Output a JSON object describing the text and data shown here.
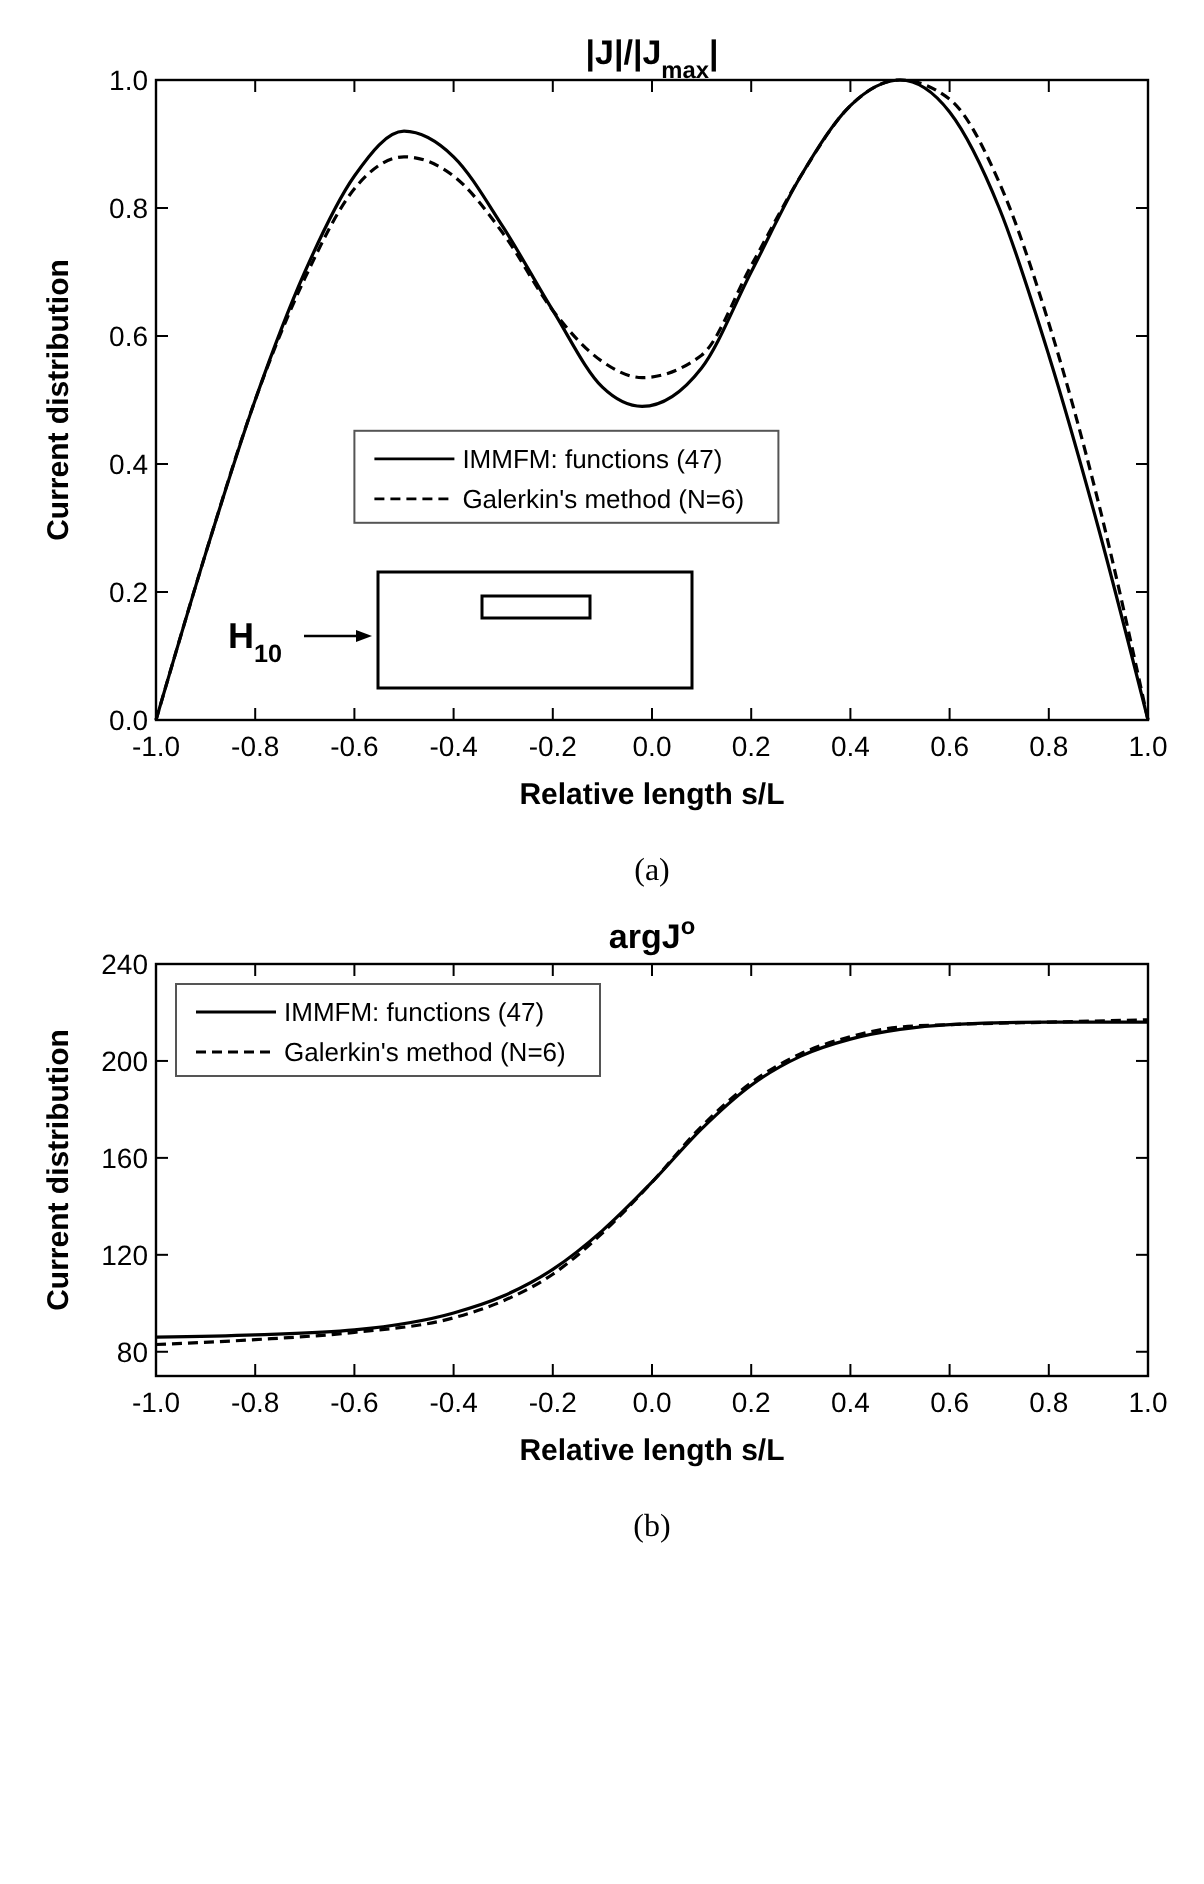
{
  "chart_data": [
    {
      "type": "line",
      "title": "|J|/|J$_{max}$|",
      "xlabel": "Relative length s/L",
      "ylabel": "Current distribution",
      "xlim": [
        -1,
        1
      ],
      "ylim": [
        0,
        1
      ],
      "xticks": [
        {
          "value": -1,
          "label": "-1.0"
        },
        -0.8,
        -0.6,
        -0.4,
        -0.2,
        {
          "value": 0,
          "label": "0.0"
        },
        0.2,
        0.4,
        0.6,
        0.8,
        {
          "value": 1,
          "label": "1.0"
        }
      ],
      "yticks": [
        {
          "value": 0,
          "label": "0.0"
        },
        0.2,
        0.4,
        0.6,
        0.8,
        {
          "value": 1,
          "label": "1.0"
        }
      ],
      "legend": "center",
      "annotations": [
        "H$_{10}$",
        "(a)"
      ],
      "x": [
        -1,
        -0.9,
        -0.8,
        -0.7,
        -0.6,
        -0.5,
        -0.4,
        -0.3,
        -0.2,
        -0.1,
        -0.02,
        0.1,
        0.2,
        0.3,
        0.4,
        0.5,
        0.6,
        0.7,
        0.8,
        0.9,
        1
      ],
      "series": [
        {
          "name": "IMMFM: functions (47)",
          "color": "#000000",
          "line_style": "solid",
          "values": [
            0,
            0.26,
            0.5,
            0.7,
            0.85,
            0.92,
            0.88,
            0.77,
            0.64,
            0.52,
            0.49,
            0.55,
            0.7,
            0.85,
            0.96,
            1,
            0.95,
            0.8,
            0.57,
            0.3,
            0
          ]
        },
        {
          "name": "Galerkin's method (N=6)",
          "color": "#000000",
          "line_style": "dashed",
          "values": [
            0,
            0.26,
            0.5,
            0.69,
            0.83,
            0.88,
            0.85,
            0.76,
            0.64,
            0.56,
            0.535,
            0.57,
            0.71,
            0.85,
            0.96,
            1,
            0.97,
            0.84,
            0.62,
            0.34,
            0
          ]
        }
      ]
    },
    {
      "type": "line",
      "title": "argJ$^{o}$",
      "xlabel": "Relative length s/L",
      "ylabel": "Current distribution",
      "xlim": [
        -1,
        1
      ],
      "ylim": [
        70,
        240
      ],
      "xticks": [
        {
          "value": -1,
          "label": "-1.0"
        },
        -0.8,
        -0.6,
        -0.4,
        -0.2,
        {
          "value": 0,
          "label": "0.0"
        },
        0.2,
        0.4,
        0.6,
        0.8,
        {
          "value": 1,
          "label": "1.0"
        }
      ],
      "yticks": [
        80,
        120,
        160,
        200,
        240
      ],
      "legend": "top left",
      "annotations": [
        "(b)"
      ],
      "x": [
        -1,
        -0.8,
        -0.6,
        -0.4,
        -0.3,
        -0.2,
        -0.1,
        0,
        0.1,
        0.2,
        0.3,
        0.4,
        0.5,
        0.6,
        0.8,
        1
      ],
      "series": [
        {
          "name": "IMMFM: functions (47)",
          "color": "#000000",
          "line_style": "solid",
          "values": [
            86,
            87,
            89,
            96,
            103,
            114,
            130,
            150,
            172,
            190,
            202,
            209,
            213,
            215,
            216,
            216
          ]
        },
        {
          "name": "Galerkin's method (N=6)",
          "color": "#000000",
          "line_style": "dashed",
          "values": [
            83,
            85,
            88,
            94,
            101,
            112,
            129,
            150,
            173,
            191,
            203,
            210,
            214,
            215,
            216,
            217
          ]
        }
      ]
    }
  ]
}
